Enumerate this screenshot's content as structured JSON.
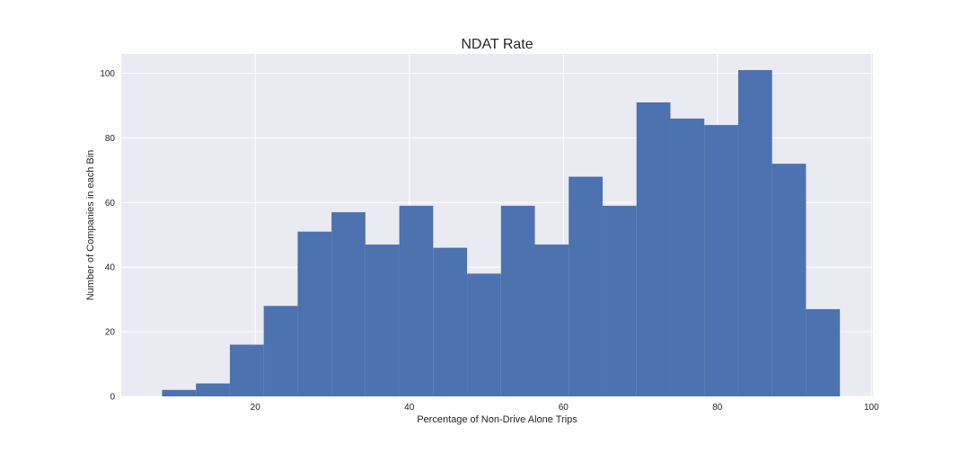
{
  "chart_data": {
    "type": "bar",
    "title": "NDAT Rate",
    "xlabel": "Percentage of Non-Drive Alone Trips",
    "ylabel": "Number of Companies in each Bin",
    "xlim": [
      2.6,
      100.2
    ],
    "ylim": [
      0,
      106
    ],
    "x_ticks": [
      20,
      40,
      60,
      80,
      100
    ],
    "y_ticks": [
      0,
      20,
      40,
      60,
      80,
      100
    ],
    "grid": true,
    "bar_color": "#4c72b0",
    "plot_background": "#eaeaf2",
    "grid_color": "#ffffff",
    "bin_edges": [
      7.9,
      12.3,
      16.7,
      21.1,
      25.5,
      29.9,
      34.3,
      38.7,
      43.1,
      47.5,
      51.9,
      56.3,
      60.7,
      65.1,
      69.5,
      73.9,
      78.3,
      82.7,
      87.1,
      91.5,
      95.9
    ],
    "values": [
      2,
      4,
      16,
      28,
      51,
      57,
      47,
      59,
      46,
      38,
      59,
      47,
      68,
      59,
      91,
      86,
      84,
      101,
      72,
      27
    ]
  }
}
